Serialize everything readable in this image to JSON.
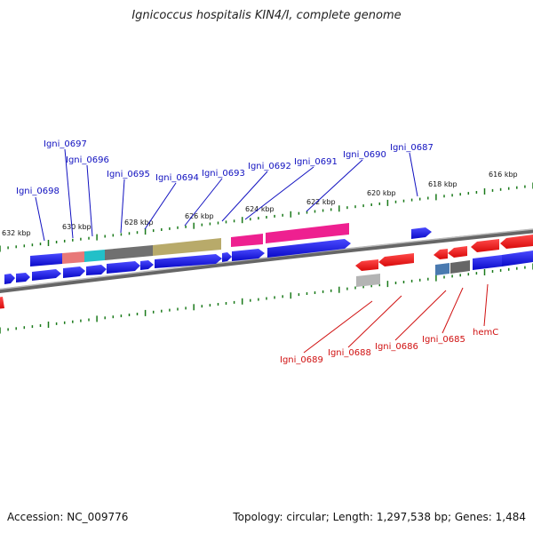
{
  "title": "Ignicoccus hospitalis KIN4/I, complete genome",
  "footer": {
    "accession": "Accession: NC_009776",
    "summary": "Topology: circular; Length: 1,297,538 bp; Genes: 1,484"
  },
  "scale_labels": [
    "632 kbp",
    "630 kbp",
    "628 kbp",
    "626 kbp",
    "624 kbp",
    "622 kbp",
    "620 kbp",
    "618 kbp",
    "616 kbp"
  ],
  "forward_gene_labels": [
    "Igni_0698",
    "Igni_0697",
    "Igni_0696",
    "Igni_0695",
    "Igni_0694",
    "Igni_0693",
    "Igni_0692",
    "Igni_0691",
    "Igni_0690",
    "Igni_0687"
  ],
  "reverse_gene_labels": [
    "Igni_0689",
    "Igni_0688",
    "Igni_0686",
    "Igni_0685",
    "hemC"
  ],
  "colors": {
    "forward": "#1a1ae0",
    "reverse": "#ee1111",
    "label_forward": "#1010c0",
    "label_reverse": "#d01010",
    "tick": "#1a7a1a",
    "backbone": "#888888"
  }
}
